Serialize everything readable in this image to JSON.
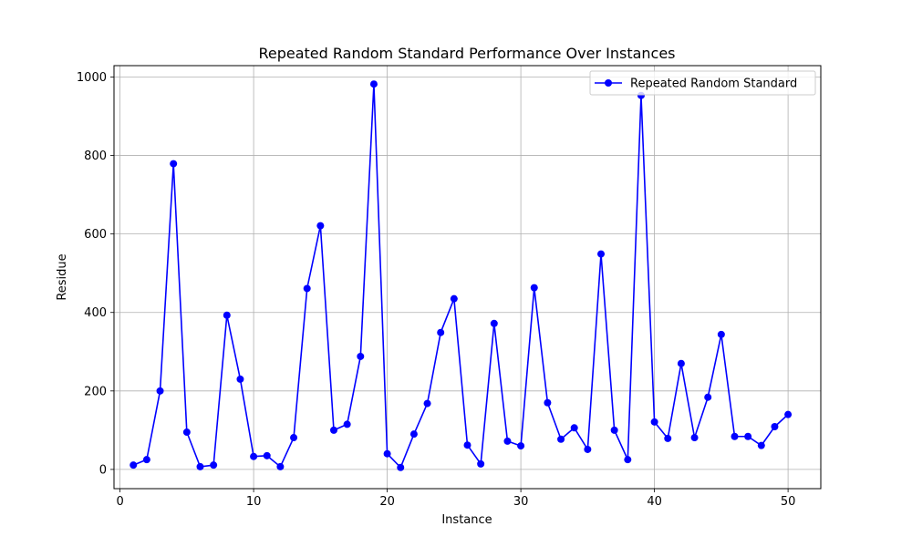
{
  "chart_data": {
    "type": "line",
    "title": "Repeated Random Standard Performance Over Instances",
    "xlabel": "Instance",
    "ylabel": "Residue",
    "xlim": [
      -0.45,
      52.45
    ],
    "ylim": [
      -49,
      1029
    ],
    "xticks": [
      0,
      10,
      20,
      30,
      40,
      50
    ],
    "yticks": [
      0,
      200,
      400,
      600,
      800,
      1000
    ],
    "grid": true,
    "legend_position": "top-right",
    "series": [
      {
        "name": "Repeated Random Standard",
        "color": "#0000ff",
        "marker": "circle",
        "x": [
          1,
          2,
          3,
          4,
          5,
          6,
          7,
          8,
          9,
          10,
          11,
          12,
          13,
          14,
          15,
          16,
          17,
          18,
          19,
          20,
          21,
          22,
          23,
          24,
          25,
          26,
          27,
          28,
          29,
          30,
          31,
          32,
          33,
          34,
          35,
          36,
          37,
          38,
          39,
          40,
          41,
          42,
          43,
          44,
          45,
          46,
          47,
          48,
          49,
          50
        ],
        "values": [
          11,
          25,
          200,
          779,
          95,
          7,
          11,
          393,
          230,
          33,
          35,
          7,
          81,
          461,
          621,
          100,
          115,
          288,
          982,
          40,
          5,
          90,
          168,
          349,
          435,
          62,
          14,
          372,
          72,
          60,
          463,
          170,
          77,
          106,
          51,
          549,
          100,
          25,
          953,
          121,
          79,
          270,
          81,
          184,
          344,
          84,
          84,
          61,
          109,
          140
        ]
      }
    ]
  }
}
